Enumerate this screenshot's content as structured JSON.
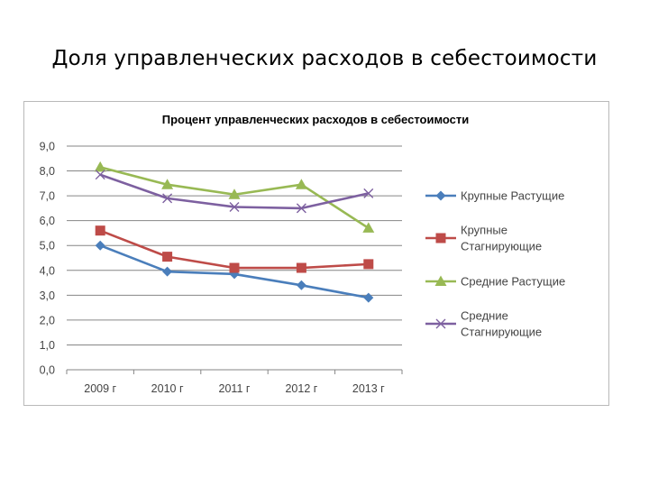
{
  "slide": {
    "title": "Доля управленческих расходов в себестоимости"
  },
  "chart_data": {
    "type": "line",
    "title": "Процент управленческих расходов в себестоимости",
    "categories": [
      "2009 г",
      "2010 г",
      "2011 г",
      "2012 г",
      "2013 г"
    ],
    "y_ticks": [
      "0,0",
      "1,0",
      "2,0",
      "3,0",
      "4,0",
      "5,0",
      "6,0",
      "7,0",
      "8,0",
      "9,0"
    ],
    "ylim": [
      0,
      9
    ],
    "grid": "horizontal",
    "legend_position": "right",
    "series": [
      {
        "name": "Крупные Растущие",
        "name_lines": [
          "Крупные Растущие"
        ],
        "values": [
          5.0,
          3.95,
          3.85,
          3.4,
          2.9
        ],
        "color": "#4a7ebb",
        "marker": "diamond"
      },
      {
        "name": "Крупные Стагнирующие",
        "name_lines": [
          "Крупные",
          "Стагнирующие"
        ],
        "values": [
          5.6,
          4.55,
          4.1,
          4.1,
          4.25
        ],
        "color": "#be4b48",
        "marker": "square"
      },
      {
        "name": "Средние Растущие",
        "name_lines": [
          "Средние Растущие"
        ],
        "values": [
          8.15,
          7.45,
          7.05,
          7.45,
          5.7
        ],
        "color": "#98b954",
        "marker": "triangle"
      },
      {
        "name": "Средние Стагнирующие",
        "name_lines": [
          "Средние",
          "Стагнирующие"
        ],
        "values": [
          7.85,
          6.9,
          6.55,
          6.5,
          7.1
        ],
        "color": "#7d60a0",
        "marker": "x"
      }
    ]
  }
}
